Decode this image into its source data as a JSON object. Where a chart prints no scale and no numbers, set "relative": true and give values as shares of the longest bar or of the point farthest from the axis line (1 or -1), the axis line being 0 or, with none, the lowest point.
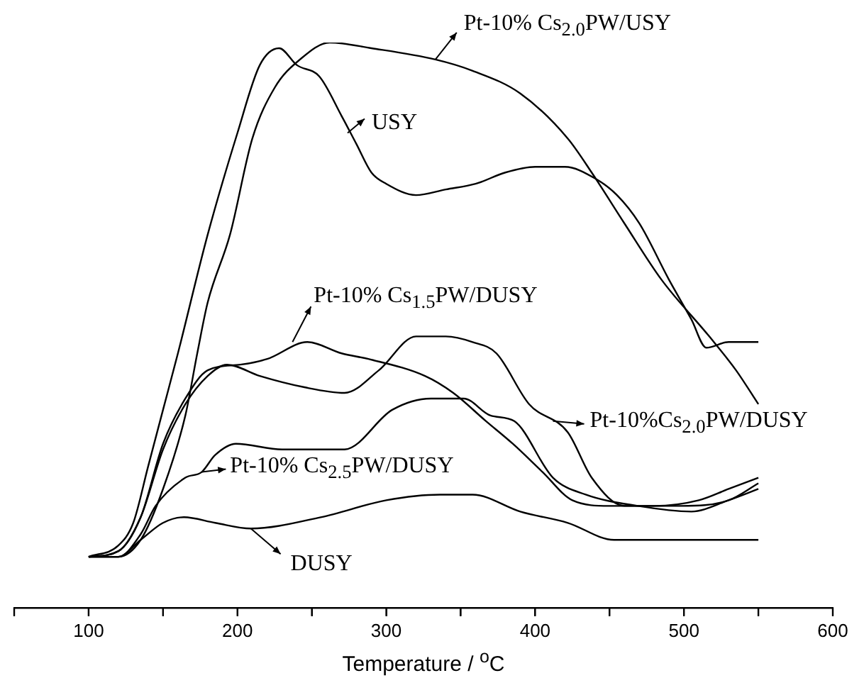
{
  "chart_data": {
    "type": "line",
    "relative": true,
    "xlabel": "Temperature / $^{o}$C",
    "xlim": [
      50,
      600
    ],
    "xticks": [
      {
        "value": 50,
        "label": null
      },
      100,
      {
        "value": 150,
        "label": null
      },
      200,
      {
        "value": 250,
        "label": null
      },
      300,
      {
        "value": 350,
        "label": null
      },
      400,
      {
        "value": 450,
        "label": null
      },
      500,
      {
        "value": 550,
        "label": null
      },
      600
    ],
    "tick_labels": "x",
    "grid": false,
    "legend": false,
    "marker": "none",
    "line_style": "solid",
    "series": [
      {
        "color": "#000000",
        "x": [
          100,
          120,
          130,
          140,
          150,
          160,
          180,
          200,
          215,
          228,
          240,
          255,
          270,
          280,
          290,
          300,
          320,
          340,
          360,
          380,
          400,
          420,
          440,
          455,
          470,
          490,
          505,
          515,
          530,
          550
        ],
        "values": [
          0.09,
          0.11,
          0.15,
          0.25,
          0.35,
          0.45,
          0.66,
          0.84,
          0.96,
          0.99,
          0.96,
          0.94,
          0.87,
          0.82,
          0.77,
          0.75,
          0.73,
          0.74,
          0.75,
          0.77,
          0.78,
          0.78,
          0.76,
          0.73,
          0.68,
          0.58,
          0.51,
          0.46,
          0.47,
          0.47
        ]
      },
      {
        "color": "#000000",
        "x": [
          100,
          120,
          135,
          150,
          165,
          173,
          180,
          195,
          210,
          225,
          242,
          262,
          290,
          333,
          358,
          390,
          422,
          438,
          460,
          485,
          517,
          535,
          550
        ],
        "values": [
          0.09,
          0.09,
          0.12,
          0.21,
          0.34,
          0.45,
          0.54,
          0.66,
          0.83,
          0.92,
          0.97,
          1.0,
          0.99,
          0.97,
          0.95,
          0.91,
          0.83,
          0.77,
          0.68,
          0.58,
          0.48,
          0.42,
          0.36
        ]
      },
      {
        "color": "#000000",
        "x": [
          100,
          120,
          135,
          150,
          165,
          180,
          202,
          220,
          247,
          270,
          288,
          326,
          345,
          367,
          385,
          405,
          425,
          450,
          480,
          510,
          530,
          550
        ],
        "values": [
          0.09,
          0.1,
          0.16,
          0.29,
          0.37,
          0.42,
          0.43,
          0.44,
          0.47,
          0.45,
          0.44,
          0.41,
          0.38,
          0.33,
          0.29,
          0.24,
          0.19,
          0.18,
          0.18,
          0.19,
          0.21,
          0.23
        ]
      },
      {
        "color": "#000000",
        "x": [
          100,
          120,
          135,
          150,
          165,
          180,
          193,
          215,
          245,
          272,
          295,
          320,
          340,
          358,
          374,
          396,
          422,
          438,
          460,
          498,
          530,
          550
        ],
        "values": [
          0.09,
          0.1,
          0.16,
          0.28,
          0.36,
          0.41,
          0.43,
          0.41,
          0.39,
          0.38,
          0.42,
          0.48,
          0.48,
          0.47,
          0.45,
          0.36,
          0.31,
          0.23,
          0.18,
          0.18,
          0.19,
          0.22
        ]
      },
      {
        "color": "#000000",
        "x": [
          100,
          120,
          135,
          145,
          165,
          176,
          185,
          199,
          230,
          272,
          304,
          330,
          352,
          370,
          386,
          412,
          434,
          469,
          505,
          530,
          550
        ],
        "values": [
          0.09,
          0.09,
          0.13,
          0.18,
          0.23,
          0.24,
          0.27,
          0.29,
          0.28,
          0.28,
          0.35,
          0.37,
          0.37,
          0.34,
          0.33,
          0.23,
          0.2,
          0.18,
          0.17,
          0.19,
          0.21
        ]
      },
      {
        "color": "#000000",
        "x": [
          100,
          120,
          135,
          150,
          164,
          185,
          209,
          256,
          300,
          336,
          358,
          390,
          422,
          453,
          500,
          550
        ],
        "values": [
          0.09,
          0.09,
          0.12,
          0.15,
          0.16,
          0.15,
          0.14,
          0.16,
          0.19,
          0.2,
          0.2,
          0.17,
          0.15,
          0.12,
          0.12,
          0.12
        ]
      }
    ],
    "annotations": [
      {
        "text": "Pt-10% Cs$_{2.0}$PW/USY",
        "x": 333,
        "y": 0.97
      },
      {
        "text": "USY",
        "x": 274,
        "y": 0.84
      },
      {
        "text": "Pt-10% Cs$_{1.5}$PW/DUSY",
        "x": 237,
        "y": 0.47
      },
      {
        "text": "Pt-10%Cs$_{2.0}$PW/DUSY",
        "x": 412,
        "y": 0.33
      },
      {
        "text": "Pt-10% Cs$_{2.5}$PW/DUSY",
        "x": 176,
        "y": 0.24
      },
      {
        "text": "DUSY",
        "x": 209,
        "y": 0.14
      }
    ]
  }
}
